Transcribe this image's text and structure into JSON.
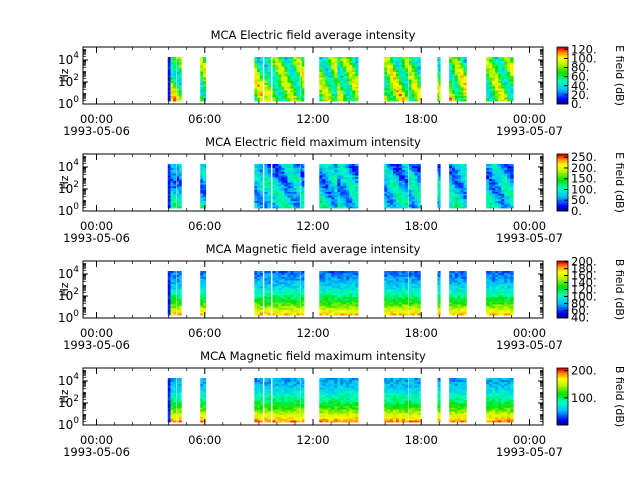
{
  "chart_data": [
    {
      "type": "heatmap",
      "title": "MCA  Electric field average intensity",
      "ylabel": "Hz",
      "colorbar_label": "E field (dB)",
      "colorbar_ticks": [
        "0.",
        "20.",
        "40.",
        "60.",
        "80.",
        "100.",
        "120."
      ],
      "colorbar_range": [
        0,
        125
      ],
      "y_ticks": [
        {
          "base": "10",
          "exp": "0"
        },
        {
          "base": "10",
          "exp": "2"
        },
        {
          "base": "10",
          "exp": "4"
        }
      ],
      "x_ticks": [
        "00:00",
        "06:00",
        "12:00",
        "18:00",
        "00:00"
      ],
      "x_dates": [
        "1993-05-06",
        "1993-05-07"
      ],
      "x_range_hours": [
        -0.75,
        24.75
      ],
      "data_intervals_hours": [
        [
          3.95,
          4.4
        ],
        [
          4.45,
          4.7
        ],
        [
          5.75,
          6.05
        ],
        [
          8.75,
          9.2
        ],
        [
          9.3,
          9.65
        ],
        [
          9.75,
          11.25
        ],
        [
          11.3,
          11.5
        ],
        [
          12.35,
          13.35
        ],
        [
          13.35,
          14.5
        ],
        [
          15.95,
          17.25
        ],
        [
          17.3,
          17.95
        ],
        [
          18.9,
          19.05
        ],
        [
          19.55,
          20.5
        ],
        [
          21.6,
          23.1
        ]
      ],
      "mean_level_fraction": 0.52
    },
    {
      "type": "heatmap",
      "title": "MCA  Electric field maximum intensity",
      "ylabel": "Hz",
      "colorbar_label": "E field (dB)",
      "colorbar_ticks": [
        "0.",
        "50.",
        "100.",
        "150.",
        "200.",
        "250."
      ],
      "colorbar_range": [
        0,
        265
      ],
      "y_ticks": [
        {
          "base": "10",
          "exp": "0"
        },
        {
          "base": "10",
          "exp": "2"
        },
        {
          "base": "10",
          "exp": "4"
        }
      ],
      "x_ticks": [
        "00:00",
        "06:00",
        "12:00",
        "18:00",
        "00:00"
      ],
      "x_dates": [
        "1993-05-06",
        "1993-05-07"
      ],
      "x_range_hours": [
        -0.75,
        24.75
      ],
      "data_intervals_hours": [
        [
          3.95,
          4.4
        ],
        [
          4.45,
          4.7
        ],
        [
          5.75,
          6.05
        ],
        [
          8.75,
          9.2
        ],
        [
          9.3,
          9.65
        ],
        [
          9.75,
          11.25
        ],
        [
          11.3,
          11.5
        ],
        [
          12.35,
          13.35
        ],
        [
          13.35,
          14.5
        ],
        [
          15.95,
          17.25
        ],
        [
          17.3,
          17.95
        ],
        [
          18.9,
          19.05
        ],
        [
          19.55,
          20.5
        ],
        [
          21.6,
          23.1
        ]
      ],
      "mean_level_fraction": 0.33
    },
    {
      "type": "heatmap",
      "title": "MCA  Magnetic field average intensity",
      "ylabel": "Hz",
      "colorbar_label": "B field (dB)",
      "colorbar_ticks": [
        "40.",
        "60.",
        "80.",
        "100.",
        "120.",
        "140.",
        "160.",
        "180.",
        "200."
      ],
      "colorbar_range": [
        38,
        202
      ],
      "y_ticks": [
        {
          "base": "10",
          "exp": "0"
        },
        {
          "base": "10",
          "exp": "2"
        },
        {
          "base": "10",
          "exp": "4"
        }
      ],
      "x_ticks": [
        "00:00",
        "06:00",
        "12:00",
        "18:00",
        "00:00"
      ],
      "x_dates": [
        "1993-05-06",
        "1993-05-07"
      ],
      "x_range_hours": [
        -0.75,
        24.75
      ],
      "data_intervals_hours": [
        [
          3.95,
          4.4
        ],
        [
          4.45,
          4.7
        ],
        [
          5.75,
          6.05
        ],
        [
          8.75,
          9.2
        ],
        [
          9.3,
          9.65
        ],
        [
          9.75,
          11.25
        ],
        [
          11.3,
          11.5
        ],
        [
          12.35,
          13.35
        ],
        [
          13.35,
          14.5
        ],
        [
          15.95,
          17.25
        ],
        [
          17.3,
          17.95
        ],
        [
          18.9,
          19.05
        ],
        [
          19.55,
          20.5
        ],
        [
          21.6,
          23.1
        ]
      ],
      "mean_level_fraction": 0.45
    },
    {
      "type": "heatmap",
      "title": "MCA  Magnetic field maximum intensity",
      "ylabel": "Hz",
      "colorbar_label": "B field (dB)",
      "colorbar_ticks": [
        "100.",
        "200."
      ],
      "colorbar_range": [
        0,
        210
      ],
      "y_ticks": [
        {
          "base": "10",
          "exp": "0"
        },
        {
          "base": "10",
          "exp": "2"
        },
        {
          "base": "10",
          "exp": "4"
        }
      ],
      "x_ticks": [
        "00:00",
        "06:00",
        "12:00",
        "18:00",
        "00:00"
      ],
      "x_dates": [
        "1993-05-06",
        "1993-05-07"
      ],
      "x_range_hours": [
        -0.75,
        24.75
      ],
      "data_intervals_hours": [
        [
          3.95,
          4.4
        ],
        [
          4.45,
          4.7
        ],
        [
          5.75,
          6.05
        ],
        [
          8.75,
          9.2
        ],
        [
          9.3,
          9.65
        ],
        [
          9.75,
          11.25
        ],
        [
          11.3,
          11.5
        ],
        [
          12.35,
          13.35
        ],
        [
          13.35,
          14.5
        ],
        [
          15.95,
          17.25
        ],
        [
          17.3,
          17.95
        ],
        [
          18.9,
          19.05
        ],
        [
          19.55,
          20.5
        ],
        [
          21.6,
          23.1
        ]
      ],
      "mean_level_fraction": 0.5
    }
  ]
}
